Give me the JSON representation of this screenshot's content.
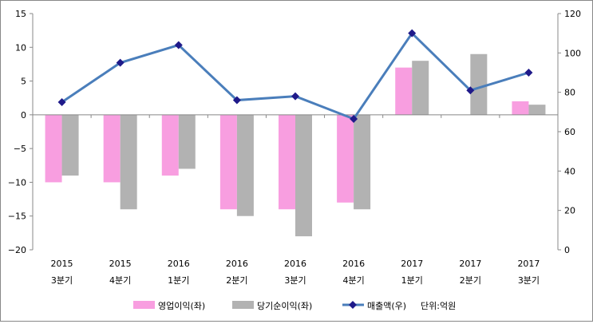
{
  "chart_data": {
    "type": "bar+line",
    "categories": [
      [
        "2015",
        "3분기"
      ],
      [
        "2015",
        "4분기"
      ],
      [
        "2016",
        "1분기"
      ],
      [
        "2016",
        "2분기"
      ],
      [
        "2016",
        "3분기"
      ],
      [
        "2016",
        "4분기"
      ],
      [
        "2017",
        "1분기"
      ],
      [
        "2017",
        "2분기"
      ],
      [
        "2017",
        "3분기"
      ]
    ],
    "series": [
      {
        "name": "영업이익(좌)",
        "type": "bar",
        "axis": "left",
        "color": "#f89ee0",
        "values": [
          -10,
          -10,
          -9,
          -14,
          -14,
          -13,
          7,
          0,
          2
        ]
      },
      {
        "name": "당기순이익(좌)",
        "type": "bar",
        "axis": "left",
        "color": "#b2b2b2",
        "values": [
          -9,
          -14,
          -8,
          -15,
          -18,
          -14,
          8,
          9,
          1.5
        ]
      },
      {
        "name": "매출액(우)",
        "type": "line",
        "axis": "right",
        "color": "#4a7ebb",
        "marker_color": "#1f1a8a",
        "values": [
          75,
          95,
          104,
          76,
          78,
          66.5,
          110,
          81,
          90
        ]
      }
    ],
    "left_axis": {
      "ylim": [
        -20,
        15
      ],
      "ticks": [
        15,
        10,
        5,
        0,
        -5,
        -10,
        -15,
        -20
      ]
    },
    "right_axis": {
      "ylim": [
        0,
        120
      ],
      "ticks": [
        120,
        100,
        80,
        60,
        40,
        20,
        0
      ]
    },
    "unit_note": "단위:억원",
    "legend_position": "bottom",
    "grid": false
  }
}
